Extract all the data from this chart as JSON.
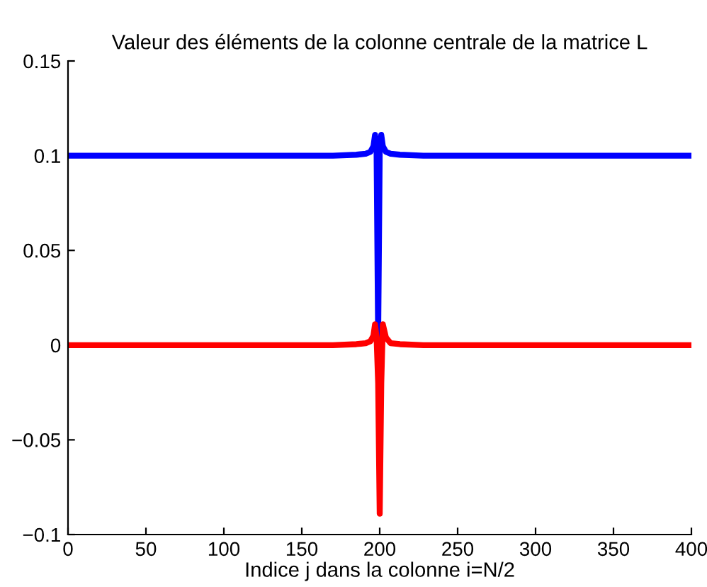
{
  "chart_data": {
    "type": "line",
    "title": "Valeur des éléments de la colonne centrale de la matrice L",
    "xlabel": "Indice j dans la colonne i=N/2",
    "series": [
      {
        "color": "#0000ff",
        "x": [
          1,
          100,
          170,
          185,
          191,
          194,
          196,
          197,
          198,
          199,
          200,
          201,
          202,
          204,
          207,
          213,
          228,
          300,
          400
        ],
        "values": [
          0.1,
          0.1,
          0.1,
          0.1005,
          0.101,
          0.102,
          0.105,
          0.111,
          0.102,
          0.004,
          0.102,
          0.111,
          0.105,
          0.102,
          0.101,
          0.1005,
          0.1,
          0.1,
          0.1
        ]
      },
      {
        "color": "#ff0000",
        "x": [
          1,
          100,
          170,
          185,
          191,
          194,
          196,
          197,
          198,
          199,
          200,
          201,
          202,
          204,
          207,
          213,
          228,
          300,
          400
        ],
        "values": [
          0,
          0,
          0,
          0.0005,
          0.001,
          0.002,
          0.005,
          0.011,
          0.004,
          -0.02,
          -0.089,
          -0.02,
          0.011,
          0.004,
          0.001,
          0.0005,
          0,
          0,
          0
        ]
      }
    ],
    "xlim": [
      0,
      400
    ],
    "xticks": [
      0,
      50,
      100,
      150,
      200,
      250,
      300,
      350,
      400
    ],
    "ylim": [
      -0.1,
      0.15
    ],
    "yticks": [
      {
        "value": -0.1,
        "label": "−0.1"
      },
      {
        "value": -0.05,
        "label": "−0.05"
      },
      0,
      0.05,
      0.1,
      0.15
    ],
    "grid": false,
    "legend": false,
    "marker": "none",
    "line_style": "solid"
  }
}
